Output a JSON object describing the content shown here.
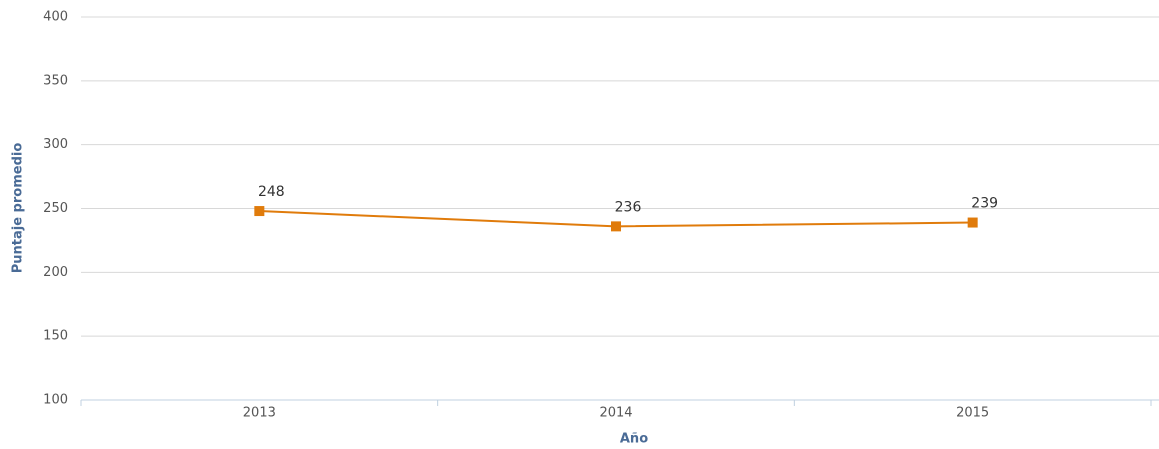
{
  "chart_data": {
    "type": "line",
    "categories": [
      "2013",
      "2014",
      "2015"
    ],
    "series": [
      {
        "name": "Puntaje",
        "color": "#e07b0b",
        "values": [
          248,
          236,
          239
        ]
      }
    ],
    "ylim": [
      100,
      400
    ],
    "yticks": [
      100,
      150,
      200,
      250,
      300,
      350,
      400
    ],
    "grid": true,
    "y_label": "Puntaje promedio",
    "x_label": "Año"
  }
}
